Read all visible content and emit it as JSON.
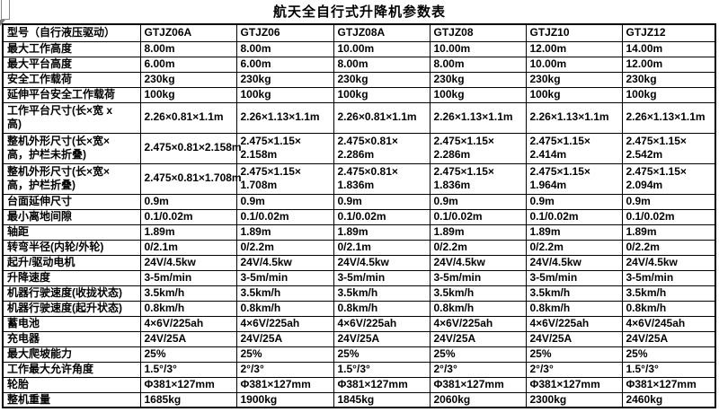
{
  "title": "航天全自行式升降机参数表",
  "highlight_color": "#ff0000",
  "table": {
    "header": [
      "型号（自行液压驱动）",
      "GTJZ06A",
      "GTJZ06",
      "GTJZ08A",
      "GTJZ08",
      "GTJZ10",
      "GTJZ12"
    ],
    "rows": [
      {
        "label": "最大工作高度",
        "tall": false,
        "highlight": false,
        "values": [
          "8.00m",
          "8.00m",
          "10.00m",
          "10.00m",
          "12.00m",
          "14.00m"
        ]
      },
      {
        "label": "最大平台高度",
        "tall": false,
        "highlight": false,
        "values": [
          "6.00m",
          "6.00m",
          "8.00m",
          "8.00m",
          "10.00m",
          "12.00m"
        ]
      },
      {
        "label": "安全工作载荷",
        "tall": false,
        "highlight": false,
        "values": [
          "230kg",
          "230kg",
          "230kg",
          "230kg",
          "230kg",
          "230kg"
        ]
      },
      {
        "label": "延伸平台安全工作载荷",
        "tall": false,
        "highlight": false,
        "values": [
          "100kg",
          "100kg",
          "100kg",
          "100kg",
          "100kg",
          "100kg"
        ]
      },
      {
        "label": "工作平台尺寸(长×宽 x\n高)",
        "tall": true,
        "highlight": false,
        "values": [
          "2.26×0.81×1.1m",
          "2.26×1.13×1.1m",
          "2.26×0.81×1.1m",
          "2.26×1.13×1.1m",
          "2.26×1.13×1.1m",
          "2.26×1.13×1.1m"
        ]
      },
      {
        "label": "整机外形尺寸(长×宽×\n高，护栏未折叠)",
        "tall": true,
        "highlight": false,
        "values": [
          "2.475×0.81×2.158m",
          "2.475×1.15×\n2.158m",
          "2.475×0.81×\n2.286m",
          "2.475×1.15×\n2.286m",
          "2.475×1.15×\n2.414m",
          "2.475×1.15×\n2.542m"
        ]
      },
      {
        "label": "整机外形尺寸(长×宽×\n高，护栏折叠)",
        "tall": true,
        "highlight": false,
        "values": [
          "2.475×0.81×1.708m",
          "2.475×1.15×\n1.708m",
          "2.475×0.81×\n1.836m",
          "2.475×1.15×\n1.836m",
          "2.475×1.15×\n1.964m",
          "2.475×1.15×\n2.094m"
        ]
      },
      {
        "label": "台面延伸尺寸",
        "tall": false,
        "highlight": false,
        "values": [
          "0.9m",
          "0.9m",
          "0.9m",
          "0.9m",
          "0.9m",
          "0.9m"
        ]
      },
      {
        "label": "最小离地间隙",
        "tall": false,
        "highlight": false,
        "values": [
          "0.1/0.02m",
          "0.1/0.02m",
          "0.1/0.02m",
          "0.1/0.02m",
          "0.1/0.02m",
          "0.1/0.02m"
        ]
      },
      {
        "label": "轴距",
        "tall": false,
        "highlight": false,
        "values": [
          "1.89m",
          "1.89m",
          "1.89m",
          "1.89m",
          "1.89m",
          "1.89m"
        ]
      },
      {
        "label": "转弯半径(内轮/外轮)",
        "tall": false,
        "highlight": false,
        "values": [
          "0/2.1m",
          "0/2.2m",
          "0/2.1m",
          "0/2.2m",
          "0/2.2m",
          "0/2.2m"
        ]
      },
      {
        "label": "起升/驱动电机",
        "tall": false,
        "highlight": false,
        "values": [
          "24V/4.5kw",
          "24V/4.5kw",
          "24V/4.5kw",
          "24V/4.5kw",
          "24V/4.5kw",
          "24V/4.5kw"
        ]
      },
      {
        "label": "升降速度",
        "tall": false,
        "highlight": false,
        "values": [
          "3-5m/min",
          "3-5m/min",
          "3-5m/min",
          "3-5m/min",
          "3-5m/min",
          "3-5m/min"
        ]
      },
      {
        "label": "机器行驶速度(收拢状态)",
        "tall": false,
        "highlight": false,
        "values": [
          "3.5km/h",
          "3.5km/h",
          "3.5km/h",
          "3.5km/h",
          "3.5km/h",
          "3.5km/h"
        ]
      },
      {
        "label": "机器行驶速度(起升状态)",
        "tall": false,
        "highlight": false,
        "values": [
          "0.8km/h",
          "0.8km/h",
          "0.8km/h",
          "0.8km/h",
          "0.8km/h",
          "0.8km/h"
        ]
      },
      {
        "label": "蓄电池",
        "tall": false,
        "highlight": false,
        "values": [
          "4×6V/225ah",
          "4×6V/225ah",
          "4×6V/225ah",
          "4×6V/225ah",
          "4×6V/225ah",
          "4×6V/245ah"
        ]
      },
      {
        "label": "充电器",
        "tall": false,
        "highlight": false,
        "values": [
          "24V/25A",
          "24V/25A",
          "24V/25A",
          "24V/25A",
          "24V/25A",
          "24V/25A"
        ]
      },
      {
        "label": "最大爬坡能力",
        "tall": false,
        "highlight": false,
        "values": [
          "25%",
          "25%",
          "25%",
          "25%",
          "25%",
          "25%"
        ]
      },
      {
        "label": "工作最大允许角度",
        "tall": false,
        "highlight": false,
        "values": [
          "1.5°/3°",
          "2°/3°",
          "1.5°/3°",
          "2°/3°",
          "2°/3°",
          "1.5°/3°"
        ]
      },
      {
        "label": "轮胎",
        "tall": false,
        "highlight": false,
        "values": [
          "Φ381×127mm",
          "Φ381×127mm",
          "Φ381×127mm",
          "Φ381×127mm",
          "Φ381×127mm",
          "Φ381×127mm"
        ]
      },
      {
        "label": "整机重量",
        "tall": false,
        "highlight": true,
        "values": [
          "1685kg",
          "1900kg",
          "1845kg",
          "2060kg",
          "2300kg",
          "2460kg"
        ]
      }
    ]
  }
}
